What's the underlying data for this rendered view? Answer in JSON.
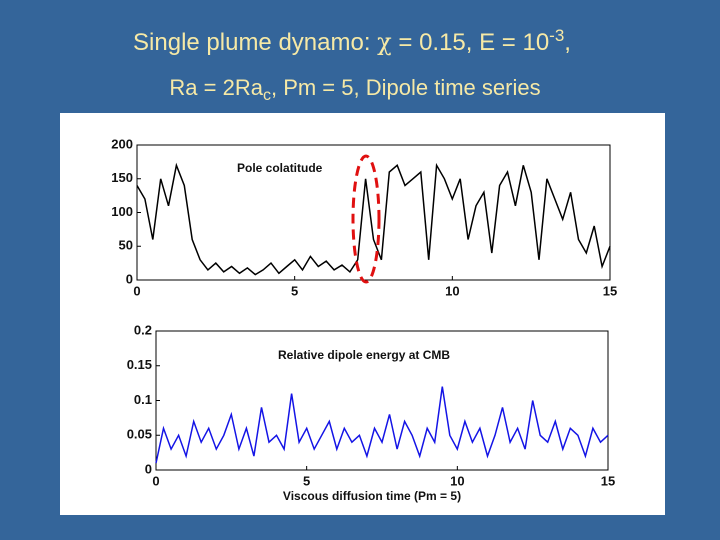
{
  "header": {
    "line1": [
      "Single plume dynamo:  ",
      "χ",
      " = 0.15, E = 10",
      "-3",
      ","
    ],
    "line2": [
      "Ra = 2Ra",
      "c",
      ", Pm = 5, Dipole time series"
    ]
  },
  "chart_data": [
    {
      "type": "line",
      "title": "Pole colatitude",
      "x": [
        0,
        0.25,
        0.5,
        0.75,
        1,
        1.25,
        1.5,
        1.75,
        2,
        2.25,
        2.5,
        2.75,
        3,
        3.25,
        3.5,
        3.75,
        4,
        4.25,
        4.5,
        4.75,
        5,
        5.25,
        5.5,
        5.75,
        6,
        6.25,
        6.5,
        6.75,
        7,
        7.25,
        7.5,
        7.75,
        8,
        8.25,
        8.5,
        8.75,
        9,
        9.25,
        9.5,
        9.75,
        10,
        10.25,
        10.5,
        10.75,
        11,
        11.25,
        11.5,
        11.75,
        12,
        12.25,
        12.5,
        12.75,
        13,
        13.25,
        13.5,
        13.75,
        14,
        14.25,
        14.5,
        14.75,
        15
      ],
      "series": [
        {
          "color": "#000000",
          "values": [
            140,
            120,
            60,
            150,
            110,
            170,
            140,
            60,
            30,
            15,
            25,
            12,
            20,
            10,
            18,
            8,
            15,
            25,
            10,
            20,
            30,
            15,
            35,
            20,
            28,
            15,
            22,
            12,
            30,
            150,
            60,
            30,
            160,
            170,
            140,
            150,
            160,
            30,
            170,
            150,
            120,
            150,
            60,
            110,
            130,
            40,
            140,
            160,
            110,
            170,
            130,
            30,
            150,
            120,
            90,
            130,
            60,
            40,
            80,
            20,
            50
          ]
        }
      ],
      "xlim": [
        0,
        15
      ],
      "xticks": [
        0,
        5,
        10,
        15
      ],
      "ylim": [
        0,
        200
      ],
      "yticks": [
        0,
        50,
        100,
        150,
        200
      ]
    },
    {
      "type": "line",
      "title": "Relative dipole energy at CMB",
      "x_label": "Viscous diffusion time (Pm = 5)",
      "x": [
        0,
        0.25,
        0.5,
        0.75,
        1,
        1.25,
        1.5,
        1.75,
        2,
        2.25,
        2.5,
        2.75,
        3,
        3.25,
        3.5,
        3.75,
        4,
        4.25,
        4.5,
        4.75,
        5,
        5.25,
        5.5,
        5.75,
        6,
        6.25,
        6.5,
        6.75,
        7,
        7.25,
        7.5,
        7.75,
        8,
        8.25,
        8.5,
        8.75,
        9,
        9.25,
        9.5,
        9.75,
        10,
        10.25,
        10.5,
        10.75,
        11,
        11.25,
        11.5,
        11.75,
        12,
        12.25,
        12.5,
        12.75,
        13,
        13.25,
        13.5,
        13.75,
        14,
        14.25,
        14.5,
        14.75,
        15
      ],
      "series": [
        {
          "color": "#1414e6",
          "values": [
            0.01,
            0.06,
            0.03,
            0.05,
            0.02,
            0.07,
            0.04,
            0.06,
            0.03,
            0.05,
            0.08,
            0.03,
            0.06,
            0.02,
            0.09,
            0.04,
            0.05,
            0.03,
            0.11,
            0.04,
            0.06,
            0.03,
            0.05,
            0.07,
            0.03,
            0.06,
            0.04,
            0.05,
            0.02,
            0.06,
            0.04,
            0.08,
            0.03,
            0.07,
            0.05,
            0.02,
            0.06,
            0.04,
            0.12,
            0.05,
            0.03,
            0.07,
            0.04,
            0.06,
            0.02,
            0.05,
            0.09,
            0.04,
            0.06,
            0.03,
            0.1,
            0.05,
            0.04,
            0.07,
            0.03,
            0.06,
            0.05,
            0.02,
            0.06,
            0.04,
            0.05
          ]
        }
      ],
      "xlim": [
        0,
        15
      ],
      "xticks": [
        0,
        5,
        10,
        15
      ],
      "ylim": [
        0,
        0.2
      ],
      "yticks": [
        0,
        0.05,
        0.1,
        0.15,
        0.2
      ]
    }
  ]
}
